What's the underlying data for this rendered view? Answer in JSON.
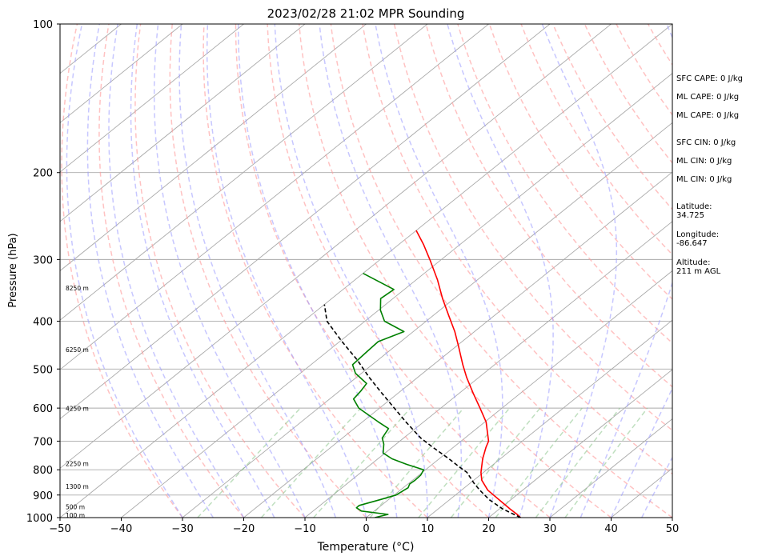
{
  "chart_data": {
    "type": "skew-t",
    "title": "2023/02/28 21:02 MPR Sounding",
    "xlabel": "Temperature (°C)",
    "ylabel": "Pressure (hPa)",
    "xlim": [
      -50,
      50
    ],
    "ylim": [
      1000,
      100
    ],
    "y_scale": "log",
    "x_ticks": [
      "−50",
      "−40",
      "−30",
      "−20",
      "−10",
      "0",
      "10",
      "20",
      "30",
      "40",
      "50"
    ],
    "y_ticks": [
      "100",
      "200",
      "300",
      "400",
      "500",
      "600",
      "700",
      "800",
      "900",
      "1000"
    ],
    "height_labels": [
      {
        "label": "100 m",
        "p": 993
      },
      {
        "label": "500 m",
        "p": 955
      },
      {
        "label": "1300 m",
        "p": 868
      },
      {
        "label": "2250 m",
        "p": 780
      },
      {
        "label": "4250 m",
        "p": 603
      },
      {
        "label": "6250 m",
        "p": 458
      },
      {
        "label": "8250 m",
        "p": 344
      }
    ],
    "series": [
      {
        "color": "#ff0000",
        "points": [
          [
            1000,
            25.2
          ],
          [
            985,
            24.0
          ],
          [
            960,
            21.7
          ],
          [
            930,
            19.0
          ],
          [
            880,
            14.3
          ],
          [
            840,
            11.3
          ],
          [
            810,
            9.6
          ],
          [
            760,
            7.1
          ],
          [
            720,
            5.3
          ],
          [
            700,
            4.5
          ],
          [
            640,
            0.2
          ],
          [
            600,
            -3.6
          ],
          [
            560,
            -7.7
          ],
          [
            520,
            -12.0
          ],
          [
            490,
            -15.2
          ],
          [
            450,
            -19.6
          ],
          [
            420,
            -23.2
          ],
          [
            390,
            -27.4
          ],
          [
            360,
            -31.9
          ],
          [
            330,
            -36.5
          ],
          [
            300,
            -41.9
          ],
          [
            280,
            -45.9
          ],
          [
            262,
            -50.0
          ]
        ]
      },
      {
        "color": "#008000",
        "points": [
          [
            1000,
            1.4
          ],
          [
            985,
            2.9
          ],
          [
            970,
            -2.1
          ],
          [
            955,
            -3.6
          ],
          [
            945,
            -3.6
          ],
          [
            920,
            -1.4
          ],
          [
            900,
            0.3
          ],
          [
            870,
            0.8
          ],
          [
            855,
            0.3
          ],
          [
            840,
            0.4
          ],
          [
            820,
            0.3
          ],
          [
            800,
            -0.3
          ],
          [
            780,
            -4.2
          ],
          [
            760,
            -7.7
          ],
          [
            740,
            -10.3
          ],
          [
            710,
            -12.0
          ],
          [
            690,
            -13.5
          ],
          [
            660,
            -14.4
          ],
          [
            640,
            -17.4
          ],
          [
            600,
            -23.4
          ],
          [
            575,
            -26.1
          ],
          [
            555,
            -26.5
          ],
          [
            535,
            -27.1
          ],
          [
            510,
            -31.0
          ],
          [
            490,
            -33.2
          ],
          [
            460,
            -33.5
          ],
          [
            440,
            -33.7
          ],
          [
            420,
            -31.5
          ],
          [
            400,
            -36.8
          ],
          [
            380,
            -39.7
          ],
          [
            360,
            -42.0
          ],
          [
            345,
            -41.7
          ],
          [
            320,
            -50.0
          ]
        ]
      },
      {
        "color": "#000000",
        "dashed": true,
        "points": [
          [
            1000,
            25.2
          ],
          [
            960,
            20.5
          ],
          [
            920,
            16.5
          ],
          [
            880,
            13.0
          ],
          [
            850,
            10.5
          ],
          [
            810,
            7.3
          ],
          [
            790,
            5.0
          ],
          [
            760,
            1.6
          ],
          [
            720,
            -3.4
          ],
          [
            690,
            -7.2
          ],
          [
            640,
            -12.9
          ],
          [
            600,
            -17.6
          ],
          [
            560,
            -22.6
          ],
          [
            520,
            -27.9
          ],
          [
            480,
            -33.3
          ],
          [
            440,
            -39.6
          ],
          [
            400,
            -46.2
          ],
          [
            370,
            -50.0
          ]
        ]
      }
    ],
    "background_lines": {
      "isotherms_color": "#aaaaaa",
      "dry_adiabats_color": "#ff9999",
      "moist_adiabats_color": "#9999ff",
      "mixing_ratio_color": "#80c080",
      "grid": true
    }
  },
  "info": {
    "sfc_cape": "SFC CAPE: 0 J/kg",
    "ml_cape_1": "ML CAPE: 0 J/kg",
    "ml_cape_2": "ML CAPE: 0 J/kg",
    "sfc_cin": "SFC CIN: 0 J/kg",
    "ml_cin_1": "ML CIN: 0 J/kg",
    "ml_cin_2": "ML CIN: 0 J/kg",
    "latitude_label": "Latitude:",
    "latitude_value": "34.725",
    "longitude_label": "Longitude:",
    "longitude_value": "-86.647",
    "altitude_label": "Altitude:",
    "altitude_value": "211 m AGL"
  }
}
